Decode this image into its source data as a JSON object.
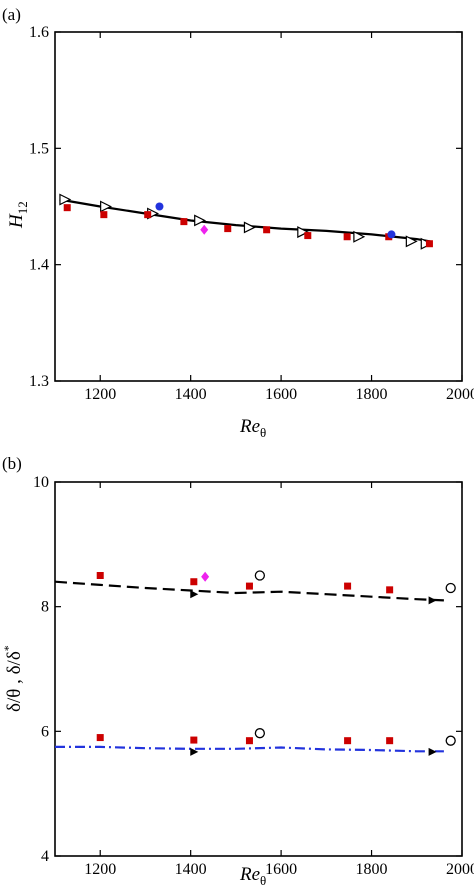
{
  "chart_data": [
    {
      "panel_label": "(a)",
      "type": "scatter",
      "xlabel": "Re",
      "xlabel_sub": "θ",
      "ylabel": "H",
      "ylabel_sub": "12",
      "xlim": [
        1100,
        2000
      ],
      "ylim": [
        1.3,
        1.6
      ],
      "xticks": [
        1200,
        1400,
        1600,
        1800,
        2000
      ],
      "yticks": [
        1.3,
        1.4,
        1.5,
        1.6
      ],
      "ytick_labels": [
        "1.3",
        "1.4",
        "1.5",
        "1.6"
      ],
      "grid": false,
      "series": [
        {
          "marker": "line",
          "color": "#000000",
          "dash": "solid",
          "x": [
            1110,
            1200,
            1300,
            1400,
            1500,
            1600,
            1700,
            1800,
            1900,
            1930
          ],
          "y": [
            1.456,
            1.45,
            1.444,
            1.438,
            1.434,
            1.431,
            1.429,
            1.426,
            1.422,
            1.42
          ]
        },
        {
          "marker": "triangle-right-open",
          "color": "#000000",
          "x": [
            1122,
            1212,
            1316,
            1420,
            1530,
            1648,
            1772,
            1888,
            1921
          ],
          "y": [
            1.456,
            1.45,
            1.444,
            1.438,
            1.432,
            1.428,
            1.424,
            1.42,
            1.418
          ]
        },
        {
          "marker": "square",
          "color": "#cc0000",
          "x": [
            1127,
            1208,
            1305,
            1385,
            1482,
            1568,
            1659,
            1746,
            1838,
            1928
          ],
          "y": [
            1.449,
            1.443,
            1.443,
            1.437,
            1.431,
            1.43,
            1.425,
            1.424,
            1.424,
            1.418
          ]
        },
        {
          "marker": "circle",
          "color": "#2233dd",
          "x": [
            1331,
            1844
          ],
          "y": [
            1.45,
            1.426
          ]
        },
        {
          "marker": "diamond",
          "color": "#ee22ee",
          "x": [
            1430
          ],
          "y": [
            1.43
          ]
        }
      ]
    },
    {
      "panel_label": "(b)",
      "type": "scatter",
      "xlabel": "Re",
      "xlabel_sub": "θ",
      "ylabel": "δ/θ , δ/δ",
      "ylabel_sup": "*",
      "xlim": [
        1100,
        2000
      ],
      "ylim": [
        4,
        10
      ],
      "xticks": [
        1200,
        1400,
        1600,
        1800,
        2000
      ],
      "yticks": [
        4,
        6,
        8,
        10
      ],
      "ytick_labels": [
        "4",
        "6",
        "8",
        "10"
      ],
      "grid": false,
      "series": [
        {
          "marker": "line",
          "color": "#000000",
          "dash": "dashed",
          "x": [
            1100,
            1200,
            1300,
            1400,
            1500,
            1600,
            1700,
            1800,
            1900,
            1960
          ],
          "y": [
            8.4,
            8.35,
            8.3,
            8.26,
            8.22,
            8.24,
            8.2,
            8.16,
            8.12,
            8.1
          ]
        },
        {
          "marker": "line",
          "color": "#2233dd",
          "dash": "dashdot",
          "x": [
            1100,
            1200,
            1300,
            1400,
            1500,
            1600,
            1700,
            1800,
            1900,
            1960
          ],
          "y": [
            5.75,
            5.75,
            5.73,
            5.72,
            5.72,
            5.74,
            5.71,
            5.7,
            5.68,
            5.68
          ]
        },
        {
          "marker": "triangle-right-filled",
          "color": "#000000",
          "x": [
            1408,
            1408,
            1935,
            1935
          ],
          "y": [
            8.2,
            5.67,
            8.1,
            5.67
          ]
        },
        {
          "marker": "square",
          "color": "#cc0000",
          "x": [
            1200,
            1407,
            1530,
            1747,
            1840,
            1200,
            1407,
            1530,
            1747,
            1840
          ],
          "y": [
            8.5,
            8.4,
            8.33,
            8.33,
            8.27,
            5.9,
            5.86,
            5.85,
            5.85,
            5.85
          ]
        },
        {
          "marker": "circle-open",
          "color": "#000000",
          "x": [
            1553,
            1975,
            1553,
            1975
          ],
          "y": [
            8.5,
            8.3,
            5.97,
            5.85
          ]
        },
        {
          "marker": "diamond",
          "color": "#ee22ee",
          "x": [
            1432
          ],
          "y": [
            8.48
          ]
        }
      ]
    }
  ]
}
